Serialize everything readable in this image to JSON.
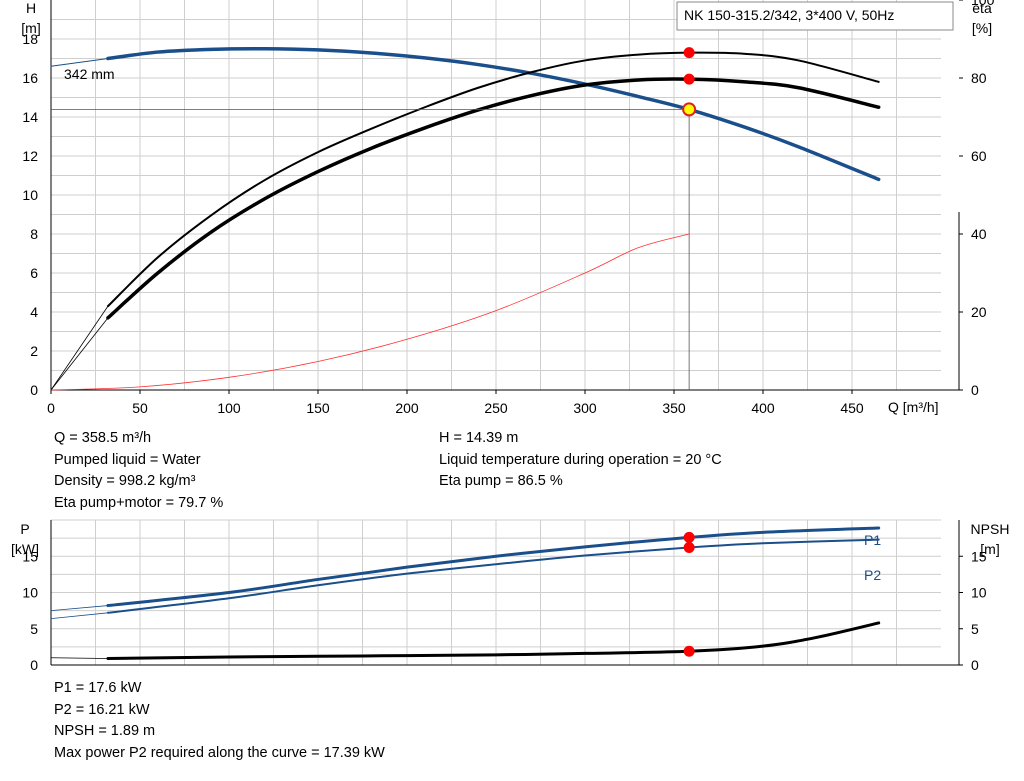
{
  "chart_data": [
    {
      "type": "line",
      "title": "NK 150-315.2/342, 3*400 V, 50Hz",
      "xlabel": "Q [m³/h]",
      "ylabel_left": [
        "H",
        "[m]"
      ],
      "ylabel_right": [
        "eta",
        "[%]"
      ],
      "xlim": [
        0,
        500
      ],
      "ylim_left": [
        0,
        20
      ],
      "ylim_right": [
        0,
        100
      ],
      "xticks": [
        "0",
        "50",
        "100",
        "150",
        "200",
        "250",
        "300",
        "350",
        "400",
        "450"
      ],
      "yticks_left": [
        "0",
        "2",
        "4",
        "6",
        "8",
        "10",
        "12",
        "14",
        "16",
        "18"
      ],
      "yticks_right": [
        "0",
        "20",
        "40",
        "60",
        "80",
        "100"
      ],
      "grid": true,
      "curve_label": "342 mm",
      "operating_point": {
        "Q": 358.5,
        "H": 14.39,
        "eta_pump": 86.5,
        "eta_pump_motor": 79.7
      },
      "series": [
        {
          "axis": "left",
          "color": "#1a4f8b",
          "width": 3.5,
          "x": [
            32,
            60,
            90,
            120,
            150,
            180,
            210,
            240,
            270,
            300,
            330,
            358.5,
            390,
            420,
            465
          ],
          "y": [
            17.0,
            17.33,
            17.47,
            17.5,
            17.44,
            17.28,
            17.03,
            16.69,
            16.24,
            15.69,
            15.05,
            14.39,
            13.47,
            12.47,
            10.8
          ]
        },
        {
          "axis": "left",
          "color": "#1a4f8b",
          "width": 1,
          "extension": true,
          "x": [
            0,
            32
          ],
          "y": [
            16.6,
            17.0
          ]
        },
        {
          "axis": "right",
          "color": "#000000",
          "width": 2,
          "x": [
            32,
            60,
            90,
            120,
            150,
            180,
            210,
            240,
            270,
            300,
            330,
            358.5,
            390,
            420,
            465
          ],
          "y": [
            21.5,
            34.0,
            44.8,
            53.8,
            61.0,
            67.0,
            72.5,
            77.5,
            81.5,
            84.5,
            86.0,
            86.5,
            86.2,
            84.5,
            79.0
          ]
        },
        {
          "axis": "right",
          "color": "#000000",
          "width": 3.5,
          "x": [
            32,
            60,
            90,
            120,
            150,
            180,
            210,
            240,
            270,
            300,
            330,
            358.5,
            390,
            420,
            465
          ],
          "y": [
            18.5,
            30.0,
            40.5,
            49.0,
            56.0,
            62.0,
            67.2,
            71.8,
            75.5,
            78.2,
            79.5,
            79.7,
            79.0,
            77.5,
            72.5
          ]
        },
        {
          "axis": "right",
          "color": "#000000",
          "width": 0.8,
          "extension": true,
          "x": [
            0,
            32
          ],
          "y": [
            0,
            21.5
          ]
        },
        {
          "axis": "right",
          "color": "#000000",
          "width": 0.8,
          "extension": true,
          "x": [
            0,
            32
          ],
          "y": [
            0,
            18.5
          ]
        },
        {
          "axis": "left",
          "color": "#ff3030",
          "width": 0.8,
          "x": [
            0,
            50,
            100,
            150,
            200,
            250,
            300,
            330,
            358.5
          ],
          "y": [
            0,
            0.16,
            0.65,
            1.46,
            2.6,
            4.07,
            6.0,
            7.3,
            8.0
          ]
        }
      ],
      "markers": [
        {
          "axis": "left",
          "x": 358.5,
          "y": 14.39,
          "type": "operating",
          "fill": "#ffff00",
          "stroke": "#e02020"
        },
        {
          "axis": "right",
          "x": 358.5,
          "y": 86.5,
          "type": "point",
          "fill": "#ff0000"
        },
        {
          "axis": "right",
          "x": 358.5,
          "y": 79.7,
          "type": "point",
          "fill": "#ff0000"
        }
      ]
    },
    {
      "type": "line",
      "xlabel": "",
      "ylabel_left": [
        "P",
        "[kW]"
      ],
      "ylabel_right": [
        "NPSH",
        "[m]"
      ],
      "xlim": [
        0,
        500
      ],
      "ylim_left": [
        0,
        20
      ],
      "ylim_right": [
        0,
        20
      ],
      "yticks_left": [
        "0",
        "5",
        "10",
        "15"
      ],
      "yticks_right": [
        "0",
        "5",
        "10",
        "15"
      ],
      "grid": true,
      "series": [
        {
          "name": "P1",
          "axis": "left",
          "color": "#1a4f8b",
          "width": 3,
          "x": [
            32,
            100,
            150,
            200,
            250,
            300,
            358.5,
            400,
            465
          ],
          "y": [
            8.2,
            10.0,
            11.8,
            13.5,
            15.0,
            16.3,
            17.6,
            18.3,
            18.9
          ]
        },
        {
          "name": "P2",
          "axis": "left",
          "color": "#1a4f8b",
          "width": 2,
          "x": [
            32,
            100,
            150,
            200,
            250,
            300,
            358.5,
            400,
            465
          ],
          "y": [
            7.2,
            9.2,
            11.0,
            12.6,
            13.9,
            15.1,
            16.21,
            16.8,
            17.3
          ]
        },
        {
          "axis": "left",
          "color": "#1a4f8b",
          "width": 0.8,
          "extension": true,
          "x": [
            0,
            32
          ],
          "y": [
            7.5,
            8.2
          ]
        },
        {
          "axis": "left",
          "color": "#1a4f8b",
          "width": 0.8,
          "extension": true,
          "x": [
            0,
            32
          ],
          "y": [
            6.4,
            7.2
          ]
        },
        {
          "axis": "right",
          "color": "#000000",
          "width": 3,
          "x": [
            32,
            100,
            150,
            200,
            250,
            300,
            358.5,
            400,
            430,
            465
          ],
          "y": [
            0.9,
            1.1,
            1.2,
            1.3,
            1.4,
            1.6,
            1.89,
            2.6,
            3.8,
            5.8
          ]
        },
        {
          "axis": "right",
          "color": "#000000",
          "width": 0.8,
          "extension": true,
          "x": [
            0,
            32
          ],
          "y": [
            1.0,
            0.9
          ]
        }
      ],
      "markers": [
        {
          "axis": "left",
          "x": 358.5,
          "y": 17.6,
          "type": "point",
          "fill": "#ff0000"
        },
        {
          "axis": "left",
          "x": 358.5,
          "y": 16.21,
          "type": "point",
          "fill": "#ff0000"
        },
        {
          "axis": "right",
          "x": 358.5,
          "y": 1.89,
          "type": "point",
          "fill": "#ff0000"
        }
      ]
    }
  ],
  "info_top_left": [
    "Q = 358.5 m³/h",
    "Pumped liquid = Water",
    "Density = 998.2 kg/m³",
    "Eta pump+motor = 79.7 %"
  ],
  "info_top_right": [
    "H = 14.39 m",
    "Liquid temperature during operation = 20 °C",
    "Eta pump = 86.5 %"
  ],
  "info_bottom": [
    "P1 = 17.6 kW",
    "P2 = 16.21 kW",
    "NPSH = 1.89 m",
    "Max power P2 required along the curve = 17.39 kW"
  ]
}
